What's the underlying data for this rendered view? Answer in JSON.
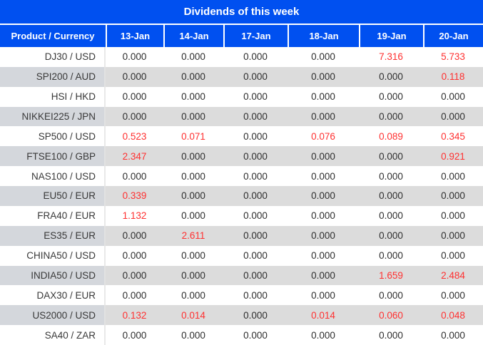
{
  "chart_data": {
    "type": "table",
    "title": "Dividends of this week",
    "product_header": "Product / Currency",
    "date_headers": [
      "13-Jan",
      "14-Jan",
      "17-Jan",
      "18-Jan",
      "19-Jan",
      "20-Jan"
    ],
    "rows": [
      {
        "product": "DJ30 / USD",
        "values": [
          "0.000",
          "0.000",
          "0.000",
          "0.000",
          "7.316",
          "5.733"
        ]
      },
      {
        "product": "SPI200 / AUD",
        "values": [
          "0.000",
          "0.000",
          "0.000",
          "0.000",
          "0.000",
          "0.118"
        ]
      },
      {
        "product": "HSI / HKD",
        "values": [
          "0.000",
          "0.000",
          "0.000",
          "0.000",
          "0.000",
          "0.000"
        ]
      },
      {
        "product": "NIKKEI225 / JPN",
        "values": [
          "0.000",
          "0.000",
          "0.000",
          "0.000",
          "0.000",
          "0.000"
        ]
      },
      {
        "product": "SP500 / USD",
        "values": [
          "0.523",
          "0.071",
          "0.000",
          "0.076",
          "0.089",
          "0.345"
        ]
      },
      {
        "product": "FTSE100 / GBP",
        "values": [
          "2.347",
          "0.000",
          "0.000",
          "0.000",
          "0.000",
          "0.921"
        ]
      },
      {
        "product": "NAS100 / USD",
        "values": [
          "0.000",
          "0.000",
          "0.000",
          "0.000",
          "0.000",
          "0.000"
        ]
      },
      {
        "product": "EU50 / EUR",
        "values": [
          "0.339",
          "0.000",
          "0.000",
          "0.000",
          "0.000",
          "0.000"
        ]
      },
      {
        "product": "FRA40 / EUR",
        "values": [
          "1.132",
          "0.000",
          "0.000",
          "0.000",
          "0.000",
          "0.000"
        ]
      },
      {
        "product": "ES35 / EUR",
        "values": [
          "0.000",
          "2.611",
          "0.000",
          "0.000",
          "0.000",
          "0.000"
        ]
      },
      {
        "product": "CHINA50 / USD",
        "values": [
          "0.000",
          "0.000",
          "0.000",
          "0.000",
          "0.000",
          "0.000"
        ]
      },
      {
        "product": "INDIA50 / USD",
        "values": [
          "0.000",
          "0.000",
          "0.000",
          "0.000",
          "1.659",
          "2.484"
        ]
      },
      {
        "product": "DAX30 / EUR",
        "values": [
          "0.000",
          "0.000",
          "0.000",
          "0.000",
          "0.000",
          "0.000"
        ]
      },
      {
        "product": "US2000 / USD",
        "values": [
          "0.132",
          "0.014",
          "0.000",
          "0.014",
          "0.060",
          "0.048"
        ]
      },
      {
        "product": "SA40 / ZAR",
        "values": [
          "0.000",
          "0.000",
          "0.000",
          "0.000",
          "0.000",
          "0.000"
        ]
      }
    ],
    "legend_rule": "nonzero dividend values rendered in red",
    "layout": {
      "striped": true,
      "stripe_pattern": "odd rows gray starting with first data row"
    }
  },
  "colors": {
    "header_blue": "#0050f0",
    "positive_red": "#ff3030",
    "stripe_gray": "#dcdcdc",
    "label_stripe_gray": "#d4d7dc",
    "text_dark": "#2e2e2e"
  }
}
